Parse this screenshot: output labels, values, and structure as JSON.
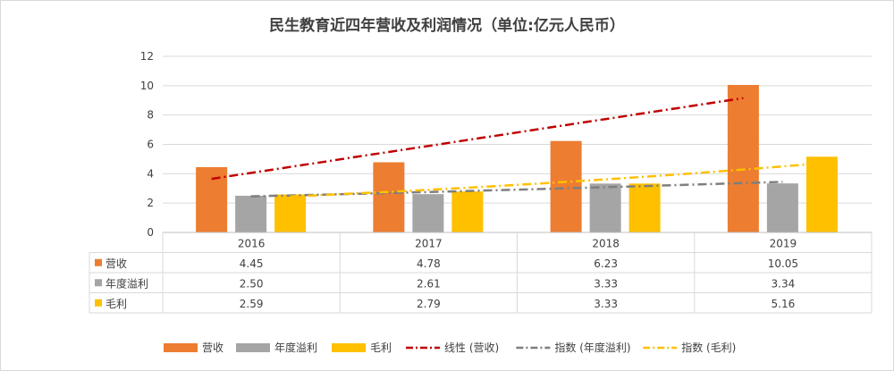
{
  "chart_data": {
    "type": "bar",
    "title": "民生教育近四年营收及利润情况（单位:亿元人民币）",
    "categories": [
      "2016",
      "2017",
      "2018",
      "2019"
    ],
    "ylim": [
      0,
      12
    ],
    "yticks": [
      "0",
      "2",
      "4",
      "6",
      "8",
      "10",
      "12"
    ],
    "ytick_values": [
      0,
      2,
      4,
      6,
      8,
      10,
      12
    ],
    "series": [
      {
        "name": "营收",
        "values": [
          4.45,
          4.78,
          6.23,
          10.05
        ],
        "labels": [
          "4.45",
          "4.78",
          "6.23",
          "10.05"
        ],
        "color": "#ed7d31"
      },
      {
        "name": "年度溢利",
        "values": [
          2.5,
          2.61,
          3.33,
          3.34
        ],
        "labels": [
          "2.50",
          "2.61",
          "3.33",
          "3.34"
        ],
        "color": "#a5a5a5"
      },
      {
        "name": "毛利",
        "values": [
          2.59,
          2.79,
          3.33,
          5.16
        ],
        "labels": [
          "2.59",
          "2.79",
          "3.33",
          "5.16"
        ],
        "color": "#ffc000"
      }
    ],
    "trendlines": [
      {
        "name": "线性 (营收)",
        "series_index": 0,
        "kind": "linear",
        "color": "#c00000",
        "start": 3.65,
        "end": 9.15
      },
      {
        "name": "指数 (年度溢利)",
        "series_index": 1,
        "kind": "exponential",
        "color": "#7f7f7f",
        "start": 2.46,
        "end": 3.45
      },
      {
        "name": "指数 (毛利)",
        "series_index": 2,
        "kind": "exponential",
        "color": "#ffc000",
        "start": 2.45,
        "end": 4.72
      }
    ],
    "grid": true,
    "legend_position": "bottom",
    "data_table": true
  }
}
